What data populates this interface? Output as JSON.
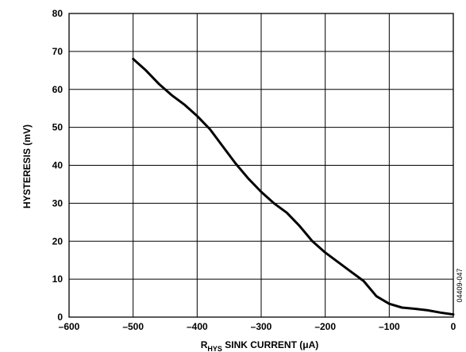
{
  "chart_data": {
    "type": "line",
    "xlabel_main": "R",
    "xlabel_sub": "HYS",
    "xlabel_rest": " SINK CURRENT (μA)",
    "ylabel": "HYSTERESIS (mV)",
    "figure_code": "04409-047",
    "xlim": [
      -600,
      0
    ],
    "ylim": [
      0,
      80
    ],
    "xticks": [
      -600,
      -500,
      -400,
      -300,
      -200,
      -100,
      0
    ],
    "xtick_labels": [
      "–600",
      "–500",
      "–400",
      "–300",
      "–200",
      "–100",
      "0"
    ],
    "yticks": [
      0,
      10,
      20,
      30,
      40,
      50,
      60,
      70,
      80
    ],
    "ytick_labels": [
      "0",
      "10",
      "20",
      "30",
      "40",
      "50",
      "60",
      "70",
      "80"
    ],
    "grid": true,
    "series": [
      {
        "color": "#000000",
        "points": [
          [
            -500,
            68
          ],
          [
            -480,
            65
          ],
          [
            -460,
            61.5
          ],
          [
            -440,
            58.5
          ],
          [
            -420,
            56
          ],
          [
            -400,
            53
          ],
          [
            -380,
            49.5
          ],
          [
            -360,
            45
          ],
          [
            -340,
            40.5
          ],
          [
            -320,
            36.5
          ],
          [
            -300,
            33
          ],
          [
            -280,
            30
          ],
          [
            -260,
            27.5
          ],
          [
            -240,
            24
          ],
          [
            -220,
            20
          ],
          [
            -200,
            17
          ],
          [
            -180,
            14.5
          ],
          [
            -160,
            12
          ],
          [
            -140,
            9.5
          ],
          [
            -120,
            5.5
          ],
          [
            -100,
            3.5
          ],
          [
            -80,
            2.5
          ],
          [
            -60,
            2.2
          ],
          [
            -40,
            1.8
          ],
          [
            -20,
            1.2
          ],
          [
            0,
            0.7
          ]
        ]
      }
    ]
  }
}
